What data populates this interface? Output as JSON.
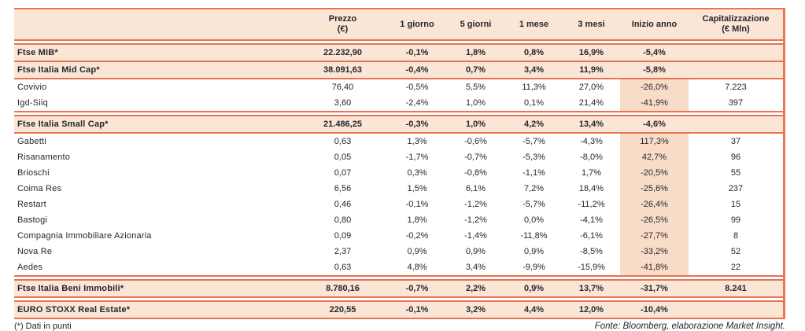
{
  "accent": {
    "line_color": "#e87355",
    "header_bg": "#fbe5d5",
    "ytd_column_bg": "#f9dcc8",
    "text_color": "#26272e"
  },
  "table": {
    "columns": [
      {
        "id": "name",
        "label": ""
      },
      {
        "id": "prezzo",
        "label": "Prezzo",
        "label2": "(€)"
      },
      {
        "id": "g1",
        "label": "1 giorno"
      },
      {
        "id": "g5",
        "label": "5 giorni"
      },
      {
        "id": "m1",
        "label": "1 mese"
      },
      {
        "id": "m3",
        "label": "3 mesi"
      },
      {
        "id": "ytd",
        "label": "Inizio anno"
      },
      {
        "id": "cap",
        "label": "Capitalizzazione",
        "label2": "(€ Mln)"
      }
    ],
    "rows": [
      {
        "name": "Ftse MIB*",
        "type": "index",
        "sep": "double",
        "prezzo": "22.232,90",
        "g1": "-0,1%",
        "g5": "1,8%",
        "m1": "0,8%",
        "m3": "16,9%",
        "ytd": "-5,4%",
        "cap": ""
      },
      {
        "name": "Ftse Italia Mid Cap*",
        "type": "index",
        "sep": "single",
        "prezzo": "38.091,63",
        "g1": "-0,4%",
        "g5": "0,7%",
        "m1": "3,4%",
        "m3": "11,9%",
        "ytd": "-5,8%",
        "cap": ""
      },
      {
        "name": "Covivio",
        "type": "stock",
        "sep": "single",
        "prezzo": "76,40",
        "g1": "-0,5%",
        "g5": "5,5%",
        "m1": "11,3%",
        "m3": "27,0%",
        "ytd": "-26,0%",
        "cap": "7.223"
      },
      {
        "name": "Igd-Siiq",
        "type": "stock",
        "sep": "none",
        "prezzo": "3,60",
        "g1": "-2,4%",
        "g5": "1,0%",
        "m1": "0,1%",
        "m3": "21,4%",
        "ytd": "-41,9%",
        "cap": "397"
      },
      {
        "name": "Ftse Italia Small Cap*",
        "type": "index",
        "sep": "double",
        "prezzo": "21.486,25",
        "g1": "-0,3%",
        "g5": "1,0%",
        "m1": "4,2%",
        "m3": "13,4%",
        "ytd": "-4,6%",
        "cap": ""
      },
      {
        "name": "Gabetti",
        "type": "stock",
        "sep": "single",
        "prezzo": "0,63",
        "g1": "1,3%",
        "g5": "-0,6%",
        "m1": "-5,7%",
        "m3": "-4,3%",
        "ytd": "117,3%",
        "cap": "37"
      },
      {
        "name": "Risanamento",
        "type": "stock",
        "sep": "none",
        "prezzo": "0,05",
        "g1": "-1,7%",
        "g5": "-0,7%",
        "m1": "-5,3%",
        "m3": "-8,0%",
        "ytd": "42,7%",
        "cap": "96"
      },
      {
        "name": "Brioschi",
        "type": "stock",
        "sep": "none",
        "prezzo": "0,07",
        "g1": "0,3%",
        "g5": "-0,8%",
        "m1": "-1,1%",
        "m3": "1,7%",
        "ytd": "-20,5%",
        "cap": "55"
      },
      {
        "name": "Coima Res",
        "type": "stock",
        "sep": "none",
        "prezzo": "6,56",
        "g1": "1,5%",
        "g5": "6,1%",
        "m1": "7,2%",
        "m3": "18,4%",
        "ytd": "-25,6%",
        "cap": "237"
      },
      {
        "name": "Restart",
        "type": "stock",
        "sep": "none",
        "prezzo": "0,46",
        "g1": "-0,1%",
        "g5": "-1,2%",
        "m1": "-5,7%",
        "m3": "-11,2%",
        "ytd": "-26,4%",
        "cap": "15"
      },
      {
        "name": "Bastogi",
        "type": "stock",
        "sep": "none",
        "prezzo": "0,80",
        "g1": "1,8%",
        "g5": "-1,2%",
        "m1": "0,0%",
        "m3": "-4,1%",
        "ytd": "-26,5%",
        "cap": "99"
      },
      {
        "name": "Compagnia Immobiliare Azionaria",
        "type": "stock",
        "sep": "none",
        "prezzo": "0,09",
        "g1": "-0,2%",
        "g5": "-1,4%",
        "m1": "-11,8%",
        "m3": "-6,1%",
        "ytd": "-27,7%",
        "cap": "8"
      },
      {
        "name": "Nova Re",
        "type": "stock",
        "sep": "none",
        "prezzo": "2,37",
        "g1": "0,9%",
        "g5": "0,9%",
        "m1": "0,9%",
        "m3": "-8,5%",
        "ytd": "-33,2%",
        "cap": "52"
      },
      {
        "name": "Aedes",
        "type": "stock",
        "sep": "none",
        "prezzo": "0,63",
        "g1": "4,8%",
        "g5": "3,4%",
        "m1": "-9,9%",
        "m3": "-15,9%",
        "ytd": "-41,8%",
        "cap": "22"
      },
      {
        "name": "Ftse Italia Beni Immobili*",
        "type": "index",
        "sep": "double",
        "prezzo": "8.780,16",
        "g1": "-0,7%",
        "g5": "2,2%",
        "m1": "0,9%",
        "m3": "13,7%",
        "ytd": "-31,7%",
        "cap": "8.241"
      },
      {
        "name": "EURO STOXX Real Estate*",
        "type": "index",
        "sep": "double",
        "prezzo": "220,55",
        "g1": "-0,1%",
        "g5": "3,2%",
        "m1": "4,4%",
        "m3": "12,0%",
        "ytd": "-10,4%",
        "cap": ""
      }
    ]
  },
  "footer": {
    "note": "(*) Dati in punti",
    "source": "Fonte: Bloomberg, elaborazione Market Insight."
  }
}
